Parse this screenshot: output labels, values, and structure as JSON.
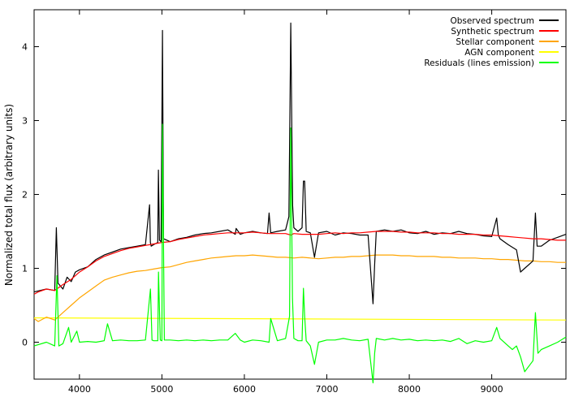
{
  "chart_data": {
    "type": "line",
    "title": "",
    "xlabel": "",
    "ylabel": "Normalized total flux (arbitrary units)",
    "xlim": [
      3450,
      9900
    ],
    "ylim": [
      -0.5,
      4.5
    ],
    "x_ticks": [
      4000,
      5000,
      6000,
      7000,
      8000,
      9000
    ],
    "y_ticks": [
      0,
      1,
      2,
      3,
      4
    ],
    "grid": false,
    "legend_position": "top-right",
    "series": [
      {
        "name": "Observed spectrum",
        "color": "#000000",
        "x": [
          3450,
          3600,
          3700,
          3720,
          3740,
          3800,
          3850,
          3900,
          3950,
          4000,
          4100,
          4200,
          4300,
          4400,
          4500,
          4600,
          4700,
          4800,
          4850,
          4860,
          4870,
          4900,
          4950,
          4958,
          4970,
          4990,
          5007,
          5020,
          5100,
          5200,
          5300,
          5400,
          5500,
          5600,
          5700,
          5800,
          5890,
          5900,
          5950,
          6000,
          6100,
          6200,
          6280,
          6300,
          6320,
          6400,
          6500,
          6540,
          6555,
          6563,
          6575,
          6585,
          6600,
          6650,
          6700,
          6716,
          6731,
          6750,
          6800,
          6850,
          6900,
          7000,
          7100,
          7200,
          7300,
          7400,
          7500,
          7560,
          7580,
          7600,
          7700,
          7800,
          7900,
          8000,
          8100,
          8200,
          8300,
          8400,
          8500,
          8600,
          8700,
          8800,
          8900,
          9000,
          9060,
          9080,
          9100,
          9200,
          9300,
          9350,
          9400,
          9500,
          9530,
          9550,
          9600,
          9700,
          9800,
          9900
        ],
        "y": [
          0.68,
          0.72,
          0.7,
          1.55,
          0.8,
          0.72,
          0.88,
          0.82,
          0.95,
          0.98,
          1.02,
          1.12,
          1.18,
          1.22,
          1.26,
          1.28,
          1.3,
          1.32,
          1.86,
          1.35,
          1.3,
          1.32,
          1.35,
          2.33,
          1.38,
          1.36,
          4.22,
          1.4,
          1.36,
          1.4,
          1.42,
          1.45,
          1.47,
          1.48,
          1.5,
          1.52,
          1.46,
          1.54,
          1.46,
          1.48,
          1.5,
          1.48,
          1.47,
          1.75,
          1.48,
          1.5,
          1.52,
          1.7,
          3.4,
          4.32,
          3.0,
          1.85,
          1.55,
          1.5,
          1.55,
          2.18,
          2.18,
          1.5,
          1.48,
          1.15,
          1.48,
          1.5,
          1.45,
          1.48,
          1.47,
          1.45,
          1.45,
          0.52,
          1.05,
          1.5,
          1.52,
          1.5,
          1.52,
          1.48,
          1.47,
          1.5,
          1.46,
          1.48,
          1.47,
          1.5,
          1.47,
          1.46,
          1.44,
          1.43,
          1.68,
          1.45,
          1.4,
          1.32,
          1.25,
          0.95,
          1.0,
          1.1,
          1.75,
          1.3,
          1.3,
          1.38,
          1.42,
          1.46
        ]
      },
      {
        "name": "Synthetic spectrum",
        "color": "#ff0000",
        "x": [
          3450,
          3500,
          3600,
          3700,
          3800,
          3900,
          4000,
          4100,
          4200,
          4300,
          4400,
          4500,
          4600,
          4700,
          4800,
          4900,
          5000,
          5100,
          5200,
          5300,
          5400,
          5500,
          5600,
          5700,
          5800,
          5900,
          6000,
          6100,
          6200,
          6300,
          6400,
          6500,
          6563,
          6600,
          6700,
          6800,
          6900,
          7000,
          7100,
          7200,
          7300,
          7400,
          7500,
          7600,
          7700,
          7800,
          7900,
          8000,
          8100,
          8200,
          8300,
          8400,
          8500,
          8600,
          8700,
          8800,
          8900,
          9000,
          9100,
          9200,
          9300,
          9400,
          9500,
          9600,
          9700,
          9800,
          9900
        ],
        "y": [
          0.65,
          0.68,
          0.72,
          0.7,
          0.78,
          0.85,
          0.95,
          1.02,
          1.1,
          1.16,
          1.2,
          1.24,
          1.27,
          1.29,
          1.31,
          1.33,
          1.35,
          1.36,
          1.39,
          1.41,
          1.43,
          1.45,
          1.46,
          1.47,
          1.48,
          1.48,
          1.48,
          1.49,
          1.48,
          1.47,
          1.47,
          1.47,
          1.45,
          1.47,
          1.46,
          1.46,
          1.46,
          1.47,
          1.48,
          1.47,
          1.48,
          1.48,
          1.49,
          1.5,
          1.5,
          1.5,
          1.49,
          1.49,
          1.48,
          1.48,
          1.48,
          1.47,
          1.47,
          1.46,
          1.46,
          1.46,
          1.45,
          1.45,
          1.44,
          1.43,
          1.42,
          1.41,
          1.4,
          1.4,
          1.39,
          1.38,
          1.38
        ]
      },
      {
        "name": "Stellar component",
        "color": "#ffa500",
        "x": [
          3450,
          3500,
          3600,
          3700,
          3800,
          3900,
          4000,
          4100,
          4200,
          4300,
          4400,
          4500,
          4600,
          4700,
          4800,
          4900,
          5000,
          5100,
          5200,
          5300,
          5400,
          5500,
          5600,
          5700,
          5800,
          5900,
          6000,
          6100,
          6200,
          6300,
          6400,
          6500,
          6600,
          6700,
          6800,
          6900,
          7000,
          7100,
          7200,
          7300,
          7400,
          7500,
          7600,
          7700,
          7800,
          7900,
          8000,
          8100,
          8200,
          8300,
          8400,
          8500,
          8600,
          8700,
          8800,
          8900,
          9000,
          9100,
          9200,
          9300,
          9400,
          9500,
          9600,
          9700,
          9800,
          9900
        ],
        "y": [
          0.32,
          0.28,
          0.34,
          0.3,
          0.4,
          0.5,
          0.6,
          0.68,
          0.76,
          0.84,
          0.88,
          0.91,
          0.94,
          0.96,
          0.97,
          0.99,
          1.01,
          1.02,
          1.05,
          1.08,
          1.1,
          1.12,
          1.14,
          1.15,
          1.16,
          1.17,
          1.17,
          1.18,
          1.17,
          1.16,
          1.15,
          1.15,
          1.14,
          1.15,
          1.14,
          1.13,
          1.14,
          1.15,
          1.15,
          1.16,
          1.16,
          1.17,
          1.18,
          1.18,
          1.18,
          1.17,
          1.17,
          1.16,
          1.16,
          1.16,
          1.15,
          1.15,
          1.14,
          1.14,
          1.14,
          1.13,
          1.13,
          1.12,
          1.12,
          1.11,
          1.1,
          1.1,
          1.09,
          1.09,
          1.08,
          1.08
        ]
      },
      {
        "name": "AGN component",
        "color": "#ffff00",
        "x": [
          3450,
          9900
        ],
        "y": [
          0.33,
          0.3
        ]
      },
      {
        "name": "Residuals (lines emission)",
        "color": "#00ff00",
        "x": [
          3450,
          3600,
          3700,
          3727,
          3750,
          3800,
          3869,
          3900,
          3968,
          4000,
          4100,
          4200,
          4300,
          4340,
          4400,
          4500,
          4600,
          4700,
          4800,
          4861,
          4880,
          4900,
          4950,
          4959,
          4980,
          5000,
          5007,
          5030,
          5100,
          5200,
          5300,
          5400,
          5500,
          5600,
          5700,
          5800,
          5890,
          5950,
          6000,
          6100,
          6200,
          6300,
          6320,
          6400,
          6500,
          6548,
          6563,
          6583,
          6600,
          6650,
          6700,
          6716,
          6731,
          6750,
          6800,
          6850,
          6900,
          7000,
          7100,
          7200,
          7300,
          7400,
          7500,
          7560,
          7580,
          7600,
          7700,
          7800,
          7900,
          8000,
          8100,
          8200,
          8300,
          8400,
          8500,
          8600,
          8700,
          8800,
          8900,
          9000,
          9060,
          9100,
          9200,
          9250,
          9300,
          9350,
          9400,
          9500,
          9530,
          9560,
          9600,
          9700,
          9800,
          9900
        ],
        "y": [
          -0.05,
          0.0,
          -0.05,
          0.9,
          -0.05,
          -0.02,
          0.2,
          0.0,
          0.15,
          0.0,
          0.01,
          0.0,
          0.02,
          0.25,
          0.02,
          0.03,
          0.02,
          0.02,
          0.03,
          0.72,
          0.03,
          0.02,
          0.02,
          0.95,
          0.03,
          0.02,
          2.95,
          0.03,
          0.03,
          0.02,
          0.03,
          0.02,
          0.03,
          0.02,
          0.03,
          0.03,
          0.12,
          0.03,
          0.0,
          0.03,
          0.02,
          0.0,
          0.32,
          0.02,
          0.05,
          0.35,
          2.9,
          0.6,
          0.05,
          0.02,
          0.02,
          0.73,
          0.35,
          0.02,
          -0.05,
          -0.3,
          0.0,
          0.03,
          0.03,
          0.05,
          0.03,
          0.02,
          0.04,
          -0.55,
          -0.15,
          0.05,
          0.03,
          0.05,
          0.03,
          0.04,
          0.02,
          0.03,
          0.02,
          0.03,
          0.01,
          0.05,
          -0.02,
          0.02,
          0.0,
          0.02,
          0.2,
          0.05,
          -0.05,
          -0.1,
          -0.05,
          -0.2,
          -0.4,
          -0.25,
          0.4,
          -0.15,
          -0.1,
          -0.05,
          0.0,
          0.07
        ]
      }
    ]
  }
}
